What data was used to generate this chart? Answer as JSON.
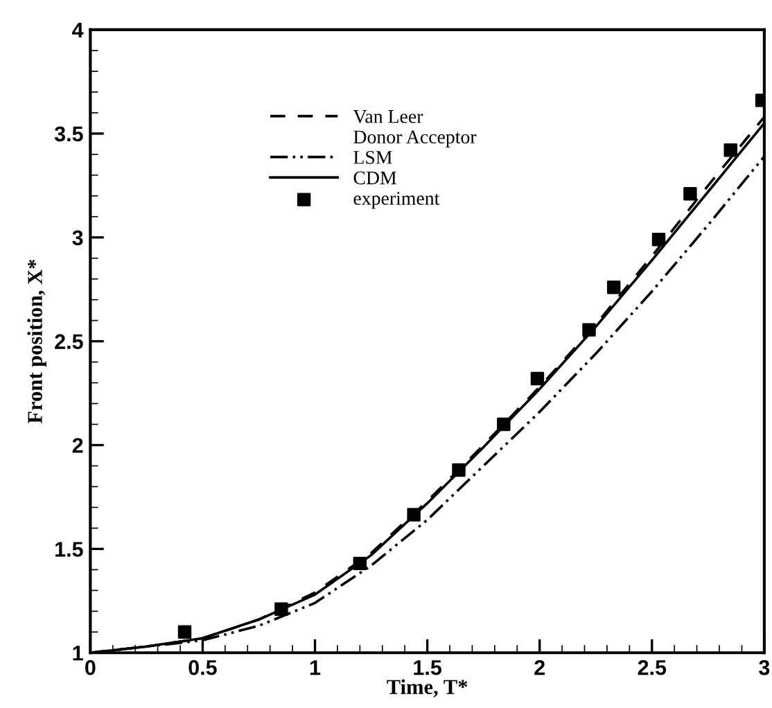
{
  "chart_data": {
    "type": "line",
    "xlabel": "Time, T*",
    "ylabel": "Front position, X*",
    "xlim": [
      0,
      3
    ],
    "ylim": [
      1,
      4
    ],
    "xticks": [
      0,
      0.5,
      1,
      1.5,
      2,
      2.5,
      3
    ],
    "yticks": [
      1,
      1.5,
      2,
      2.5,
      3,
      3.5,
      4
    ],
    "grid": false,
    "legend": "top",
    "series": [
      {
        "name": "Van Leer",
        "color": "#000000",
        "line_style": "dashed",
        "x": [
          0,
          0.25,
          0.5,
          0.75,
          1,
          1.25,
          1.5,
          1.75,
          2,
          2.25,
          2.5,
          2.75,
          3
        ],
        "values": [
          1,
          1.03,
          1.07,
          1.16,
          1.29,
          1.48,
          1.73,
          2.0,
          2.28,
          2.58,
          2.91,
          3.25,
          3.58
        ]
      },
      {
        "name": "Donor Acceptor",
        "type": "line"
      },
      {
        "name": "LSM",
        "color": "#000000",
        "line_style": "dashdotdot",
        "x": [
          0,
          0.25,
          0.5,
          0.75,
          1,
          1.25,
          1.5,
          1.75,
          2,
          2.25,
          2.5,
          2.75,
          3
        ],
        "values": [
          1,
          1.03,
          1.06,
          1.13,
          1.24,
          1.42,
          1.64,
          1.9,
          2.16,
          2.44,
          2.74,
          3.06,
          3.39
        ]
      },
      {
        "name": "CDM",
        "color": "#000000",
        "line_style": "solid",
        "x": [
          0,
          0.25,
          0.5,
          0.75,
          1,
          1.25,
          1.5,
          1.75,
          2,
          2.25,
          2.5,
          2.75,
          3
        ],
        "values": [
          1,
          1.03,
          1.07,
          1.16,
          1.28,
          1.47,
          1.72,
          1.99,
          2.27,
          2.57,
          2.89,
          3.22,
          3.55
        ]
      },
      {
        "name": "experiment",
        "type": "scatter",
        "marker": "square",
        "color": "#000000",
        "x": [
          0.42,
          0.85,
          1.2,
          1.44,
          1.64,
          1.84,
          1.99,
          2.22,
          2.33,
          2.53,
          2.67,
          2.85,
          2.99
        ],
        "values": [
          1.1,
          1.21,
          1.43,
          1.665,
          1.88,
          2.1,
          2.32,
          2.555,
          2.76,
          2.99,
          3.21,
          3.42,
          3.66
        ]
      }
    ]
  }
}
